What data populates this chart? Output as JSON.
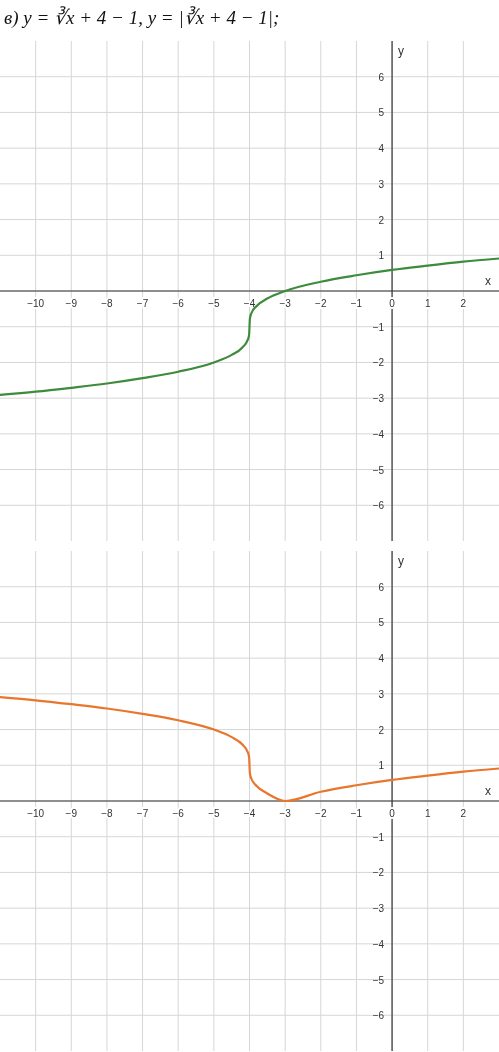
{
  "chart_data": [
    {
      "type": "line",
      "title": "в) y = ∛x + 4 − 1,  y = |∛x + 4 − 1|;",
      "xlabel": "x",
      "ylabel": "y",
      "grid": true,
      "x": [
        -11,
        -10,
        -9,
        -8,
        -7,
        -6,
        -5,
        -4.5,
        -4.2,
        -4.05,
        -4.01,
        -4,
        -3.99,
        -3.95,
        -3.8,
        -3.5,
        -3,
        -2,
        -1,
        0,
        1,
        2,
        3
      ],
      "series": [
        {
          "color": "#3d8b3d",
          "values": [
            -2.91,
            -2.82,
            -2.71,
            -2.59,
            -2.44,
            -2.26,
            -2,
            -1.79,
            -1.58,
            -1.37,
            -1.22,
            -1,
            -0.78,
            -0.63,
            -0.42,
            -0.21,
            0,
            0.26,
            0.44,
            0.59,
            0.71,
            0.82,
            0.91
          ]
        }
      ],
      "xlim": [
        -11,
        3
      ],
      "ylim": [
        -7,
        7
      ],
      "xticks": [
        -10,
        -9,
        -8,
        -7,
        -6,
        -5,
        -4,
        -3,
        -2,
        -1,
        0,
        1,
        2
      ],
      "yticks": [
        -6,
        -5,
        -4,
        -3,
        -2,
        -1,
        {
          "value": 0,
          "label": null
        },
        1,
        2,
        3,
        4,
        5,
        6
      ]
    },
    {
      "type": "line",
      "xlabel": "x",
      "ylabel": "y",
      "grid": true,
      "x": [
        -11,
        -10,
        -9,
        -8,
        -7,
        -6,
        -5,
        -4.5,
        -4.2,
        -4.05,
        -4.01,
        -4,
        -3.99,
        -3.95,
        -3.8,
        -3.5,
        -3,
        -2,
        -1,
        0,
        1,
        2,
        3
      ],
      "series": [
        {
          "color": "#e8762c",
          "values": [
            2.91,
            2.82,
            2.71,
            2.59,
            2.44,
            2.26,
            2,
            1.79,
            1.58,
            1.37,
            1.22,
            1,
            0.78,
            0.63,
            0.42,
            0.21,
            0,
            0.26,
            0.44,
            0.59,
            0.71,
            0.82,
            0.91
          ]
        }
      ],
      "xlim": [
        -11,
        3
      ],
      "ylim": [
        -7,
        7
      ],
      "xticks": [
        -10,
        -9,
        -8,
        -7,
        -6,
        -5,
        -4,
        -3,
        -2,
        -1,
        0,
        1,
        2
      ],
      "yticks": [
        -6,
        -5,
        -4,
        -3,
        -2,
        -1,
        {
          "value": 0,
          "label": null
        },
        1,
        2,
        3,
        4,
        5,
        6
      ]
    }
  ]
}
